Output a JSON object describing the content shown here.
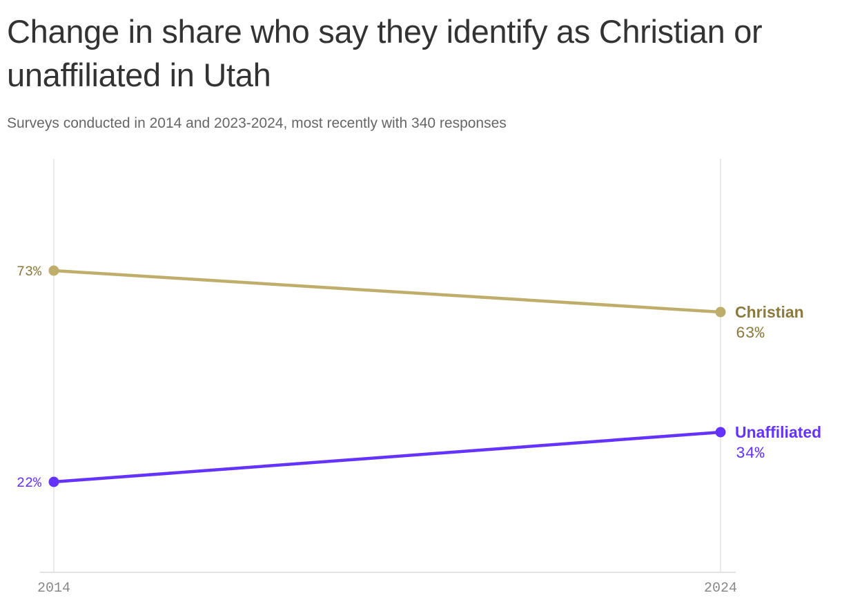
{
  "header": {
    "title": "Change in share who say they identify as Christian or unaffiliated in Utah",
    "subtitle": "Surveys conducted in 2014 and 2023-2024, most recently with 340 responses"
  },
  "chart_data": {
    "type": "line",
    "title": "Change in share who say they identify as Christian or unaffiliated in Utah",
    "subtitle": "Surveys conducted in 2014 and 2023-2024, most recently with 340 responses",
    "x": [
      "2014",
      "2024"
    ],
    "xlabel": "",
    "ylabel": "",
    "ylim": [
      0,
      100
    ],
    "grid": "vertical lines at each x tick",
    "legend": "direct labels at right end of lines",
    "series": [
      {
        "name": "Christian",
        "values": [
          73,
          63
        ],
        "color": "#bfad6b",
        "label_color": "#8a7a3e",
        "start_label": "73%",
        "end_label": "63%"
      },
      {
        "name": "Unaffiliated",
        "values": [
          22,
          34
        ],
        "color": "#6533ff",
        "label_color": "#6533ff",
        "start_label": "22%",
        "end_label": "34%"
      }
    ]
  }
}
